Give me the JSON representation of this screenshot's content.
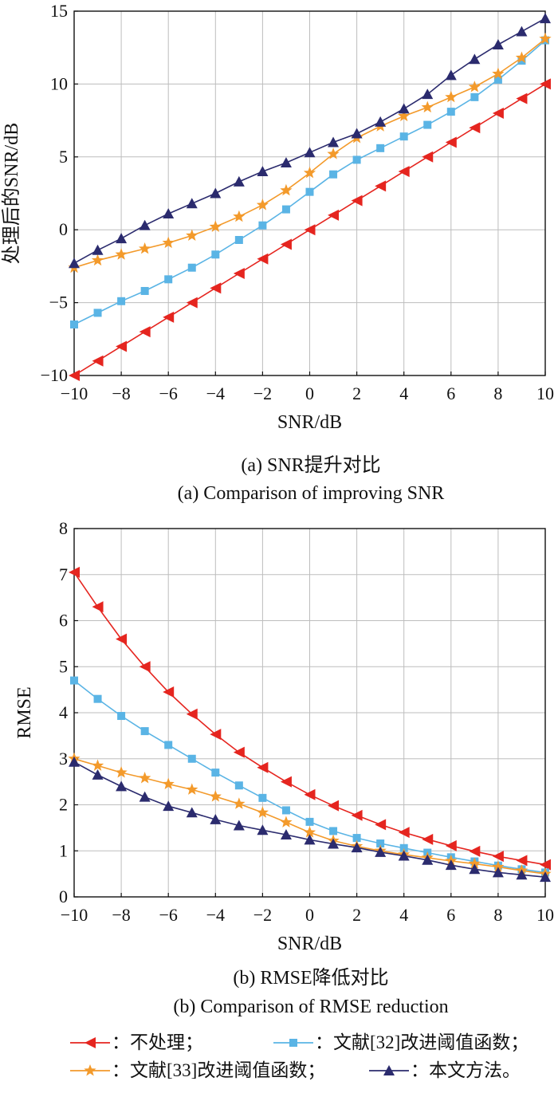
{
  "chart_data": [
    {
      "type": "line",
      "xlabel": "SNR/dB",
      "ylabel": "处理后的SNR/dB",
      "xlim": [
        -10,
        10
      ],
      "ylim": [
        -10,
        15
      ],
      "xticks": [
        -10,
        -8,
        -6,
        -4,
        -2,
        0,
        2,
        4,
        6,
        8,
        10
      ],
      "yticks": [
        -10,
        -5,
        0,
        5,
        10,
        15
      ],
      "grid": true,
      "caption_cn": "(a) SNR提升对比",
      "caption_en": "(a) Comparison of improving SNR",
      "x": [
        -10,
        -9,
        -8,
        -7,
        -6,
        -5,
        -4,
        -3,
        -2,
        -1,
        0,
        1,
        2,
        3,
        4,
        5,
        6,
        7,
        8,
        9,
        10
      ],
      "series": [
        {
          "name": "不处理",
          "color": "#e5251f",
          "marker": "triangle-left",
          "values": [
            -10,
            -9,
            -8,
            -7,
            -6,
            -5,
            -4,
            -3,
            -2,
            -1,
            0,
            1,
            2,
            3,
            4,
            5,
            6,
            7,
            8,
            9,
            10
          ]
        },
        {
          "name": "文献[32]改进阈值函数",
          "color": "#5ab4e5",
          "marker": "square",
          "values": [
            -6.5,
            -5.7,
            -4.9,
            -4.2,
            -3.4,
            -2.6,
            -1.7,
            -0.7,
            0.3,
            1.4,
            2.6,
            3.8,
            4.8,
            5.6,
            6.4,
            7.2,
            8.1,
            9.1,
            10.3,
            11.6,
            13.0
          ]
        },
        {
          "name": "文献[33]改进阈值函数",
          "color": "#f39a2b",
          "marker": "star",
          "values": [
            -2.6,
            -2.1,
            -1.7,
            -1.3,
            -0.9,
            -0.4,
            0.2,
            0.9,
            1.7,
            2.7,
            3.9,
            5.2,
            6.3,
            7.1,
            7.8,
            8.4,
            9.1,
            9.8,
            10.7,
            11.8,
            13.1
          ]
        },
        {
          "name": "本文方法",
          "color": "#2b2b6e",
          "marker": "triangle-up",
          "values": [
            -2.3,
            -1.4,
            -0.6,
            0.3,
            1.1,
            1.8,
            2.5,
            3.3,
            4.0,
            4.6,
            5.3,
            6.0,
            6.6,
            7.4,
            8.3,
            9.3,
            10.6,
            11.7,
            12.7,
            13.6,
            14.5
          ]
        }
      ]
    },
    {
      "type": "line",
      "xlabel": "SNR/dB",
      "ylabel": "RMSE",
      "xlim": [
        -10,
        10
      ],
      "ylim": [
        0,
        8
      ],
      "xticks": [
        -10,
        -8,
        -6,
        -4,
        -2,
        0,
        2,
        4,
        6,
        8,
        10
      ],
      "yticks": [
        0,
        1,
        2,
        3,
        4,
        5,
        6,
        7,
        8
      ],
      "grid": true,
      "caption_cn": "(b) RMSE降低对比",
      "caption_en": "(b) Comparison of RMSE reduction",
      "x": [
        -10,
        -9,
        -8,
        -7,
        -6,
        -5,
        -4,
        -3,
        -2,
        -1,
        0,
        1,
        2,
        3,
        4,
        5,
        6,
        7,
        8,
        9,
        10
      ],
      "series": [
        {
          "name": "不处理",
          "color": "#e5251f",
          "marker": "triangle-left",
          "values": [
            7.05,
            6.3,
            5.6,
            5.0,
            4.45,
            3.97,
            3.53,
            3.14,
            2.81,
            2.5,
            2.22,
            1.98,
            1.77,
            1.57,
            1.4,
            1.25,
            1.11,
            0.99,
            0.88,
            0.79,
            0.7
          ]
        },
        {
          "name": "文献[32]改进阈值函数",
          "color": "#5ab4e5",
          "marker": "square",
          "values": [
            4.7,
            4.3,
            3.93,
            3.6,
            3.3,
            3.0,
            2.7,
            2.42,
            2.15,
            1.88,
            1.63,
            1.43,
            1.28,
            1.16,
            1.06,
            0.96,
            0.86,
            0.77,
            0.68,
            0.6,
            0.53
          ]
        },
        {
          "name": "文献[33]改进阈值函数",
          "color": "#f39a2b",
          "marker": "star",
          "values": [
            3.0,
            2.85,
            2.7,
            2.58,
            2.45,
            2.33,
            2.18,
            2.02,
            1.83,
            1.62,
            1.4,
            1.22,
            1.1,
            1.0,
            0.92,
            0.85,
            0.78,
            0.72,
            0.65,
            0.57,
            0.5
          ]
        },
        {
          "name": "本文方法",
          "color": "#2b2b6e",
          "marker": "triangle-up",
          "values": [
            2.93,
            2.65,
            2.4,
            2.17,
            1.97,
            1.83,
            1.68,
            1.55,
            1.45,
            1.35,
            1.24,
            1.15,
            1.07,
            0.97,
            0.89,
            0.8,
            0.69,
            0.6,
            0.53,
            0.48,
            0.43
          ]
        }
      ]
    }
  ],
  "legend": {
    "items": [
      {
        "label": "：不处理；",
        "color": "#e5251f",
        "marker": "triangle-left"
      },
      {
        "label": "：文献[32]改进阈值函数；",
        "color": "#5ab4e5",
        "marker": "square"
      },
      {
        "label": "：文献[33]改进阈值函数；",
        "color": "#f39a2b",
        "marker": "star"
      },
      {
        "label": "：本文方法。",
        "color": "#2b2b6e",
        "marker": "triangle-up"
      }
    ]
  }
}
